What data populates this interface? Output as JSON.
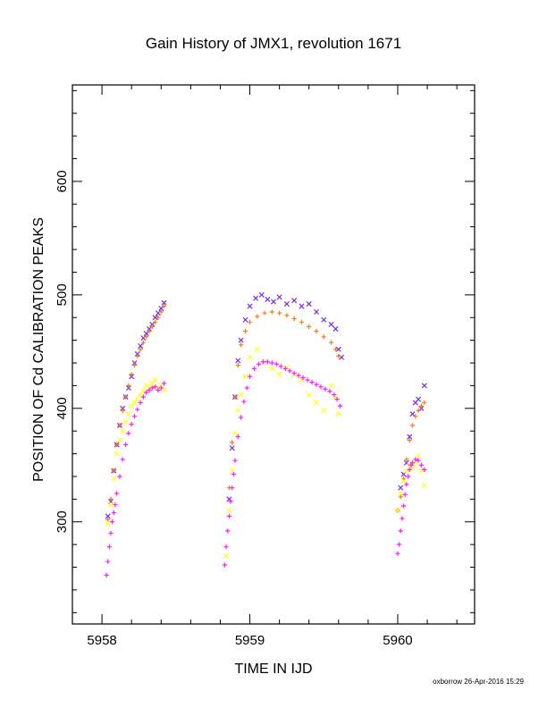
{
  "chart_data": {
    "type": "scatter",
    "title": "Gain History of JMX1, revolution 1671",
    "xlabel": "TIME IN IJD",
    "ylabel": "POSITION OF Cd CALIBRATION PEAKS",
    "xlim": [
      5957.8,
      5960.52
    ],
    "ylim": [
      210,
      685
    ],
    "x_ticks": [
      5958,
      5959,
      5960
    ],
    "x_tick_labels": [
      "5958",
      "5959",
      "5960"
    ],
    "y_ticks": [
      300,
      400,
      500,
      600
    ],
    "y_tick_labels": [
      "300",
      "400",
      "500",
      "600"
    ],
    "grid": false,
    "series": [
      {
        "marker": "x",
        "color": "#7a2be6",
        "points": [
          [
            5958.04,
            305
          ],
          [
            5958.06,
            318
          ],
          [
            5958.08,
            345
          ],
          [
            5958.1,
            368
          ],
          [
            5958.12,
            385
          ],
          [
            5958.14,
            400
          ],
          [
            5958.16,
            410
          ],
          [
            5958.18,
            418
          ],
          [
            5958.2,
            428
          ],
          [
            5958.22,
            440
          ],
          [
            5958.24,
            448
          ],
          [
            5958.26,
            455
          ],
          [
            5958.28,
            462
          ],
          [
            5958.3,
            466
          ],
          [
            5958.32,
            470
          ],
          [
            5958.34,
            474
          ],
          [
            5958.36,
            480
          ],
          [
            5958.38,
            484
          ],
          [
            5958.4,
            488
          ],
          [
            5958.42,
            493
          ],
          [
            5958.86,
            320
          ],
          [
            5958.88,
            365
          ],
          [
            5958.9,
            410
          ],
          [
            5958.92,
            442
          ],
          [
            5958.94,
            460
          ],
          [
            5958.97,
            478
          ],
          [
            5959.0,
            490
          ],
          [
            5959.04,
            497
          ],
          [
            5959.08,
            500
          ],
          [
            5959.12,
            496
          ],
          [
            5959.16,
            494
          ],
          [
            5959.2,
            498
          ],
          [
            5959.25,
            492
          ],
          [
            5959.3,
            495
          ],
          [
            5959.35,
            490
          ],
          [
            5959.4,
            492
          ],
          [
            5959.45,
            485
          ],
          [
            5959.5,
            478
          ],
          [
            5959.55,
            474
          ],
          [
            5959.58,
            470
          ],
          [
            5959.6,
            452
          ],
          [
            5959.62,
            445
          ],
          [
            5960.02,
            330
          ],
          [
            5960.04,
            342
          ],
          [
            5960.06,
            352
          ],
          [
            5960.08,
            375
          ],
          [
            5960.1,
            395
          ],
          [
            5960.12,
            405
          ],
          [
            5960.14,
            408
          ],
          [
            5960.16,
            400
          ],
          [
            5960.18,
            420
          ]
        ]
      },
      {
        "marker": "+",
        "color": "#f07f1a",
        "points": [
          [
            5958.04,
            302
          ],
          [
            5958.06,
            320
          ],
          [
            5958.08,
            345
          ],
          [
            5958.1,
            368
          ],
          [
            5958.12,
            385
          ],
          [
            5958.14,
            398
          ],
          [
            5958.16,
            410
          ],
          [
            5958.18,
            420
          ],
          [
            5958.2,
            430
          ],
          [
            5958.22,
            438
          ],
          [
            5958.24,
            446
          ],
          [
            5958.26,
            452
          ],
          [
            5958.28,
            458
          ],
          [
            5958.3,
            463
          ],
          [
            5958.32,
            468
          ],
          [
            5958.34,
            472
          ],
          [
            5958.36,
            476
          ],
          [
            5958.38,
            480
          ],
          [
            5958.4,
            485
          ],
          [
            5958.42,
            490
          ],
          [
            5958.86,
            330
          ],
          [
            5958.88,
            370
          ],
          [
            5958.9,
            410
          ],
          [
            5958.92,
            438
          ],
          [
            5958.94,
            456
          ],
          [
            5958.97,
            468
          ],
          [
            5959.0,
            476
          ],
          [
            5959.05,
            481
          ],
          [
            5959.1,
            484
          ],
          [
            5959.15,
            485
          ],
          [
            5959.2,
            484
          ],
          [
            5959.25,
            482
          ],
          [
            5959.3,
            479
          ],
          [
            5959.35,
            476
          ],
          [
            5959.4,
            472
          ],
          [
            5959.45,
            468
          ],
          [
            5959.5,
            463
          ],
          [
            5959.55,
            458
          ],
          [
            5959.58,
            452
          ],
          [
            5959.6,
            446
          ],
          [
            5960.0,
            310
          ],
          [
            5960.02,
            322
          ],
          [
            5960.04,
            338
          ],
          [
            5960.06,
            355
          ],
          [
            5960.08,
            372
          ],
          [
            5960.1,
            385
          ],
          [
            5960.12,
            393
          ],
          [
            5960.14,
            398
          ],
          [
            5960.16,
            402
          ],
          [
            5960.18,
            405
          ]
        ]
      },
      {
        "marker": "x",
        "color": "#ffff1a",
        "points": [
          [
            5958.04,
            298
          ],
          [
            5958.06,
            315
          ],
          [
            5958.08,
            338
          ],
          [
            5958.1,
            360
          ],
          [
            5958.12,
            372
          ],
          [
            5958.14,
            380
          ],
          [
            5958.16,
            388
          ],
          [
            5958.18,
            395
          ],
          [
            5958.2,
            402
          ],
          [
            5958.22,
            405
          ],
          [
            5958.24,
            408
          ],
          [
            5958.26,
            412
          ],
          [
            5958.28,
            415
          ],
          [
            5958.3,
            420
          ],
          [
            5958.32,
            418
          ],
          [
            5958.34,
            422
          ],
          [
            5958.36,
            425
          ],
          [
            5958.38,
            418
          ],
          [
            5958.4,
            420
          ],
          [
            5958.42,
            416
          ],
          [
            5958.84,
            270
          ],
          [
            5958.86,
            310
          ],
          [
            5958.88,
            345
          ],
          [
            5958.9,
            378
          ],
          [
            5958.92,
            398
          ],
          [
            5958.94,
            412
          ],
          [
            5958.97,
            428
          ],
          [
            5959.0,
            445
          ],
          [
            5959.05,
            452
          ],
          [
            5959.1,
            440
          ],
          [
            5959.15,
            435
          ],
          [
            5959.2,
            430
          ],
          [
            5959.25,
            436
          ],
          [
            5959.3,
            430
          ],
          [
            5959.35,
            425
          ],
          [
            5959.4,
            412
          ],
          [
            5959.45,
            405
          ],
          [
            5959.5,
            398
          ],
          [
            5959.55,
            420
          ],
          [
            5959.58,
            410
          ],
          [
            5959.6,
            395
          ],
          [
            5960.0,
            310
          ],
          [
            5960.02,
            325
          ],
          [
            5960.04,
            336
          ],
          [
            5960.06,
            345
          ],
          [
            5960.08,
            350
          ],
          [
            5960.1,
            348
          ],
          [
            5960.12,
            352
          ],
          [
            5960.14,
            358
          ],
          [
            5960.16,
            345
          ],
          [
            5960.18,
            332
          ]
        ]
      },
      {
        "marker": "+",
        "color": "#ff1aff",
        "points": [
          [
            5958.03,
            253
          ],
          [
            5958.04,
            265
          ],
          [
            5958.05,
            278
          ],
          [
            5958.06,
            290
          ],
          [
            5958.07,
            300
          ],
          [
            5958.08,
            308
          ],
          [
            5958.09,
            315
          ],
          [
            5958.1,
            325
          ],
          [
            5958.12,
            340
          ],
          [
            5958.14,
            355
          ],
          [
            5958.16,
            368
          ],
          [
            5958.18,
            378
          ],
          [
            5958.2,
            386
          ],
          [
            5958.22,
            393
          ],
          [
            5958.24,
            399
          ],
          [
            5958.26,
            405
          ],
          [
            5958.28,
            410
          ],
          [
            5958.3,
            414
          ],
          [
            5958.32,
            416
          ],
          [
            5958.34,
            418
          ],
          [
            5958.36,
            419
          ],
          [
            5958.38,
            416
          ],
          [
            5958.4,
            418
          ],
          [
            5958.42,
            422
          ],
          [
            5958.83,
            262
          ],
          [
            5958.84,
            278
          ],
          [
            5958.85,
            292
          ],
          [
            5958.86,
            305
          ],
          [
            5958.87,
            318
          ],
          [
            5958.88,
            330
          ],
          [
            5958.89,
            342
          ],
          [
            5958.9,
            354
          ],
          [
            5958.92,
            375
          ],
          [
            5958.94,
            392
          ],
          [
            5958.96,
            406
          ],
          [
            5958.98,
            418
          ],
          [
            5959.0,
            428
          ],
          [
            5959.03,
            435
          ],
          [
            5959.06,
            439
          ],
          [
            5959.09,
            441
          ],
          [
            5959.12,
            441
          ],
          [
            5959.15,
            440
          ],
          [
            5959.18,
            439
          ],
          [
            5959.21,
            437
          ],
          [
            5959.24,
            435
          ],
          [
            5959.27,
            433
          ],
          [
            5959.3,
            431
          ],
          [
            5959.33,
            429
          ],
          [
            5959.36,
            427
          ],
          [
            5959.39,
            425
          ],
          [
            5959.42,
            423
          ],
          [
            5959.45,
            421
          ],
          [
            5959.48,
            419
          ],
          [
            5959.51,
            417
          ],
          [
            5959.54,
            415
          ],
          [
            5959.57,
            412
          ],
          [
            5959.59,
            408
          ],
          [
            5959.61,
            402
          ],
          [
            5960.0,
            272
          ],
          [
            5960.01,
            280
          ],
          [
            5960.02,
            292
          ],
          [
            5960.03,
            303
          ],
          [
            5960.04,
            314
          ],
          [
            5960.05,
            324
          ],
          [
            5960.06,
            333
          ],
          [
            5960.07,
            340
          ],
          [
            5960.08,
            346
          ],
          [
            5960.09,
            350
          ],
          [
            5960.1,
            352
          ],
          [
            5960.12,
            355
          ],
          [
            5960.14,
            354
          ],
          [
            5960.16,
            350
          ],
          [
            5960.18,
            346
          ]
        ]
      }
    ]
  },
  "footer": "oxborrow 26-Apr-2016 15:29"
}
